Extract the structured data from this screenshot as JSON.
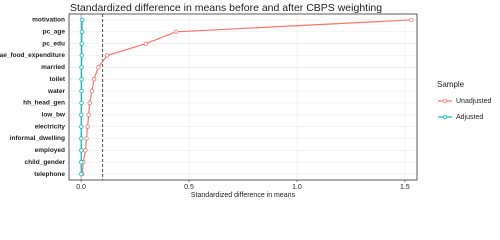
{
  "chart_data": {
    "type": "dotline",
    "title": "Standardized difference in means before and after CBPS weighting",
    "xlabel": "Standardized difference in means",
    "legend_title": "Sample",
    "categories": [
      "motivation",
      "pc_age",
      "pc_edu",
      "ae_food_expenditure",
      "married",
      "toilet",
      "water",
      "hh_head_gen",
      "low_bw",
      "electricity",
      "informal_dwelling",
      "employed",
      "child_gender",
      "telephone"
    ],
    "series": [
      {
        "name": "Unadjusted",
        "color": "#F8766D",
        "values": [
          1.53,
          0.44,
          0.3,
          0.12,
          0.08,
          0.06,
          0.05,
          0.04,
          0.035,
          0.03,
          0.025,
          0.02,
          0.01,
          0.005
        ]
      },
      {
        "name": "Adjusted",
        "color": "#00BFC4",
        "values": [
          0.005,
          0.004,
          0.003,
          0.003,
          0.002,
          0.002,
          0.002,
          0.002,
          0.001,
          0.001,
          0.001,
          0.001,
          0.001,
          0.001
        ]
      }
    ],
    "xlim": [
      -0.056,
      1.556
    ],
    "xticks": [
      {
        "value": 0,
        "label": "0.0"
      },
      {
        "value": 0.5,
        "label": "0.5"
      },
      {
        "value": 1,
        "label": "1.0"
      },
      {
        "value": 1.5,
        "label": "1.5"
      }
    ],
    "threshold": 0.1,
    "grid": true
  }
}
